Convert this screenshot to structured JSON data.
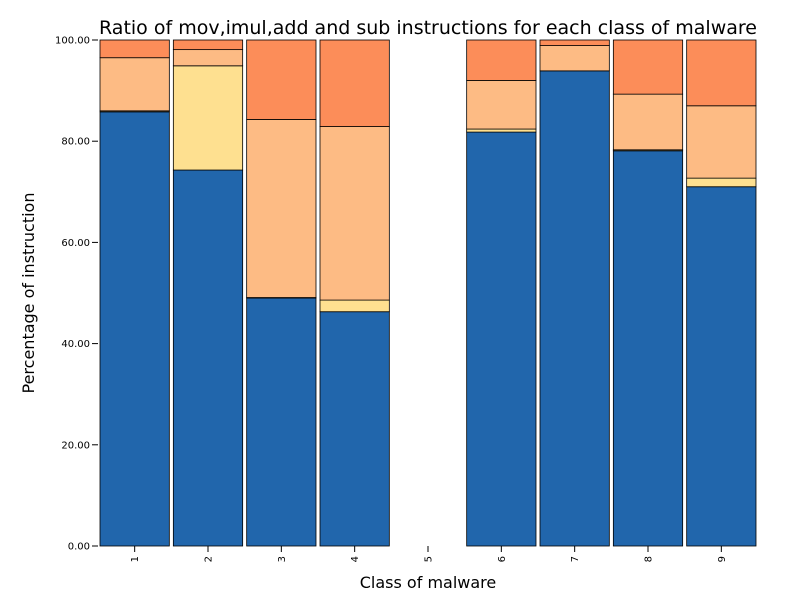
{
  "chart_data": {
    "type": "bar",
    "stacked": true,
    "title": "Ratio of mov,imul,add and sub instructions for each class of malware",
    "xlabel": "Class of malware",
    "ylabel": "Percentage of instruction",
    "ylim": [
      0,
      100
    ],
    "y_ticks": [
      "0.00",
      "20.00",
      "40.00",
      "60.00",
      "80.00",
      "100.00"
    ],
    "categories": [
      "1",
      "2",
      "3",
      "4",
      "5",
      "6",
      "7",
      "8",
      "9"
    ],
    "grid": false,
    "legend": "none",
    "series": [
      {
        "color": "#2166ac",
        "values": [
          85.8,
          74.3,
          49.0,
          46.3,
          0,
          81.8,
          93.9,
          78.1,
          71.0
        ]
      },
      {
        "color": "#fee090",
        "values": [
          0.2,
          20.6,
          0.1,
          2.3,
          0,
          0.6,
          0.0,
          0.2,
          1.7
        ]
      },
      {
        "color": "#fdbb84",
        "values": [
          10.5,
          3.2,
          35.2,
          34.3,
          0,
          9.6,
          5.0,
          11.0,
          14.3
        ]
      },
      {
        "color": "#fc8d59",
        "values": [
          3.5,
          1.9,
          15.7,
          17.1,
          0,
          8.0,
          1.1,
          10.7,
          13.0
        ]
      }
    ]
  }
}
